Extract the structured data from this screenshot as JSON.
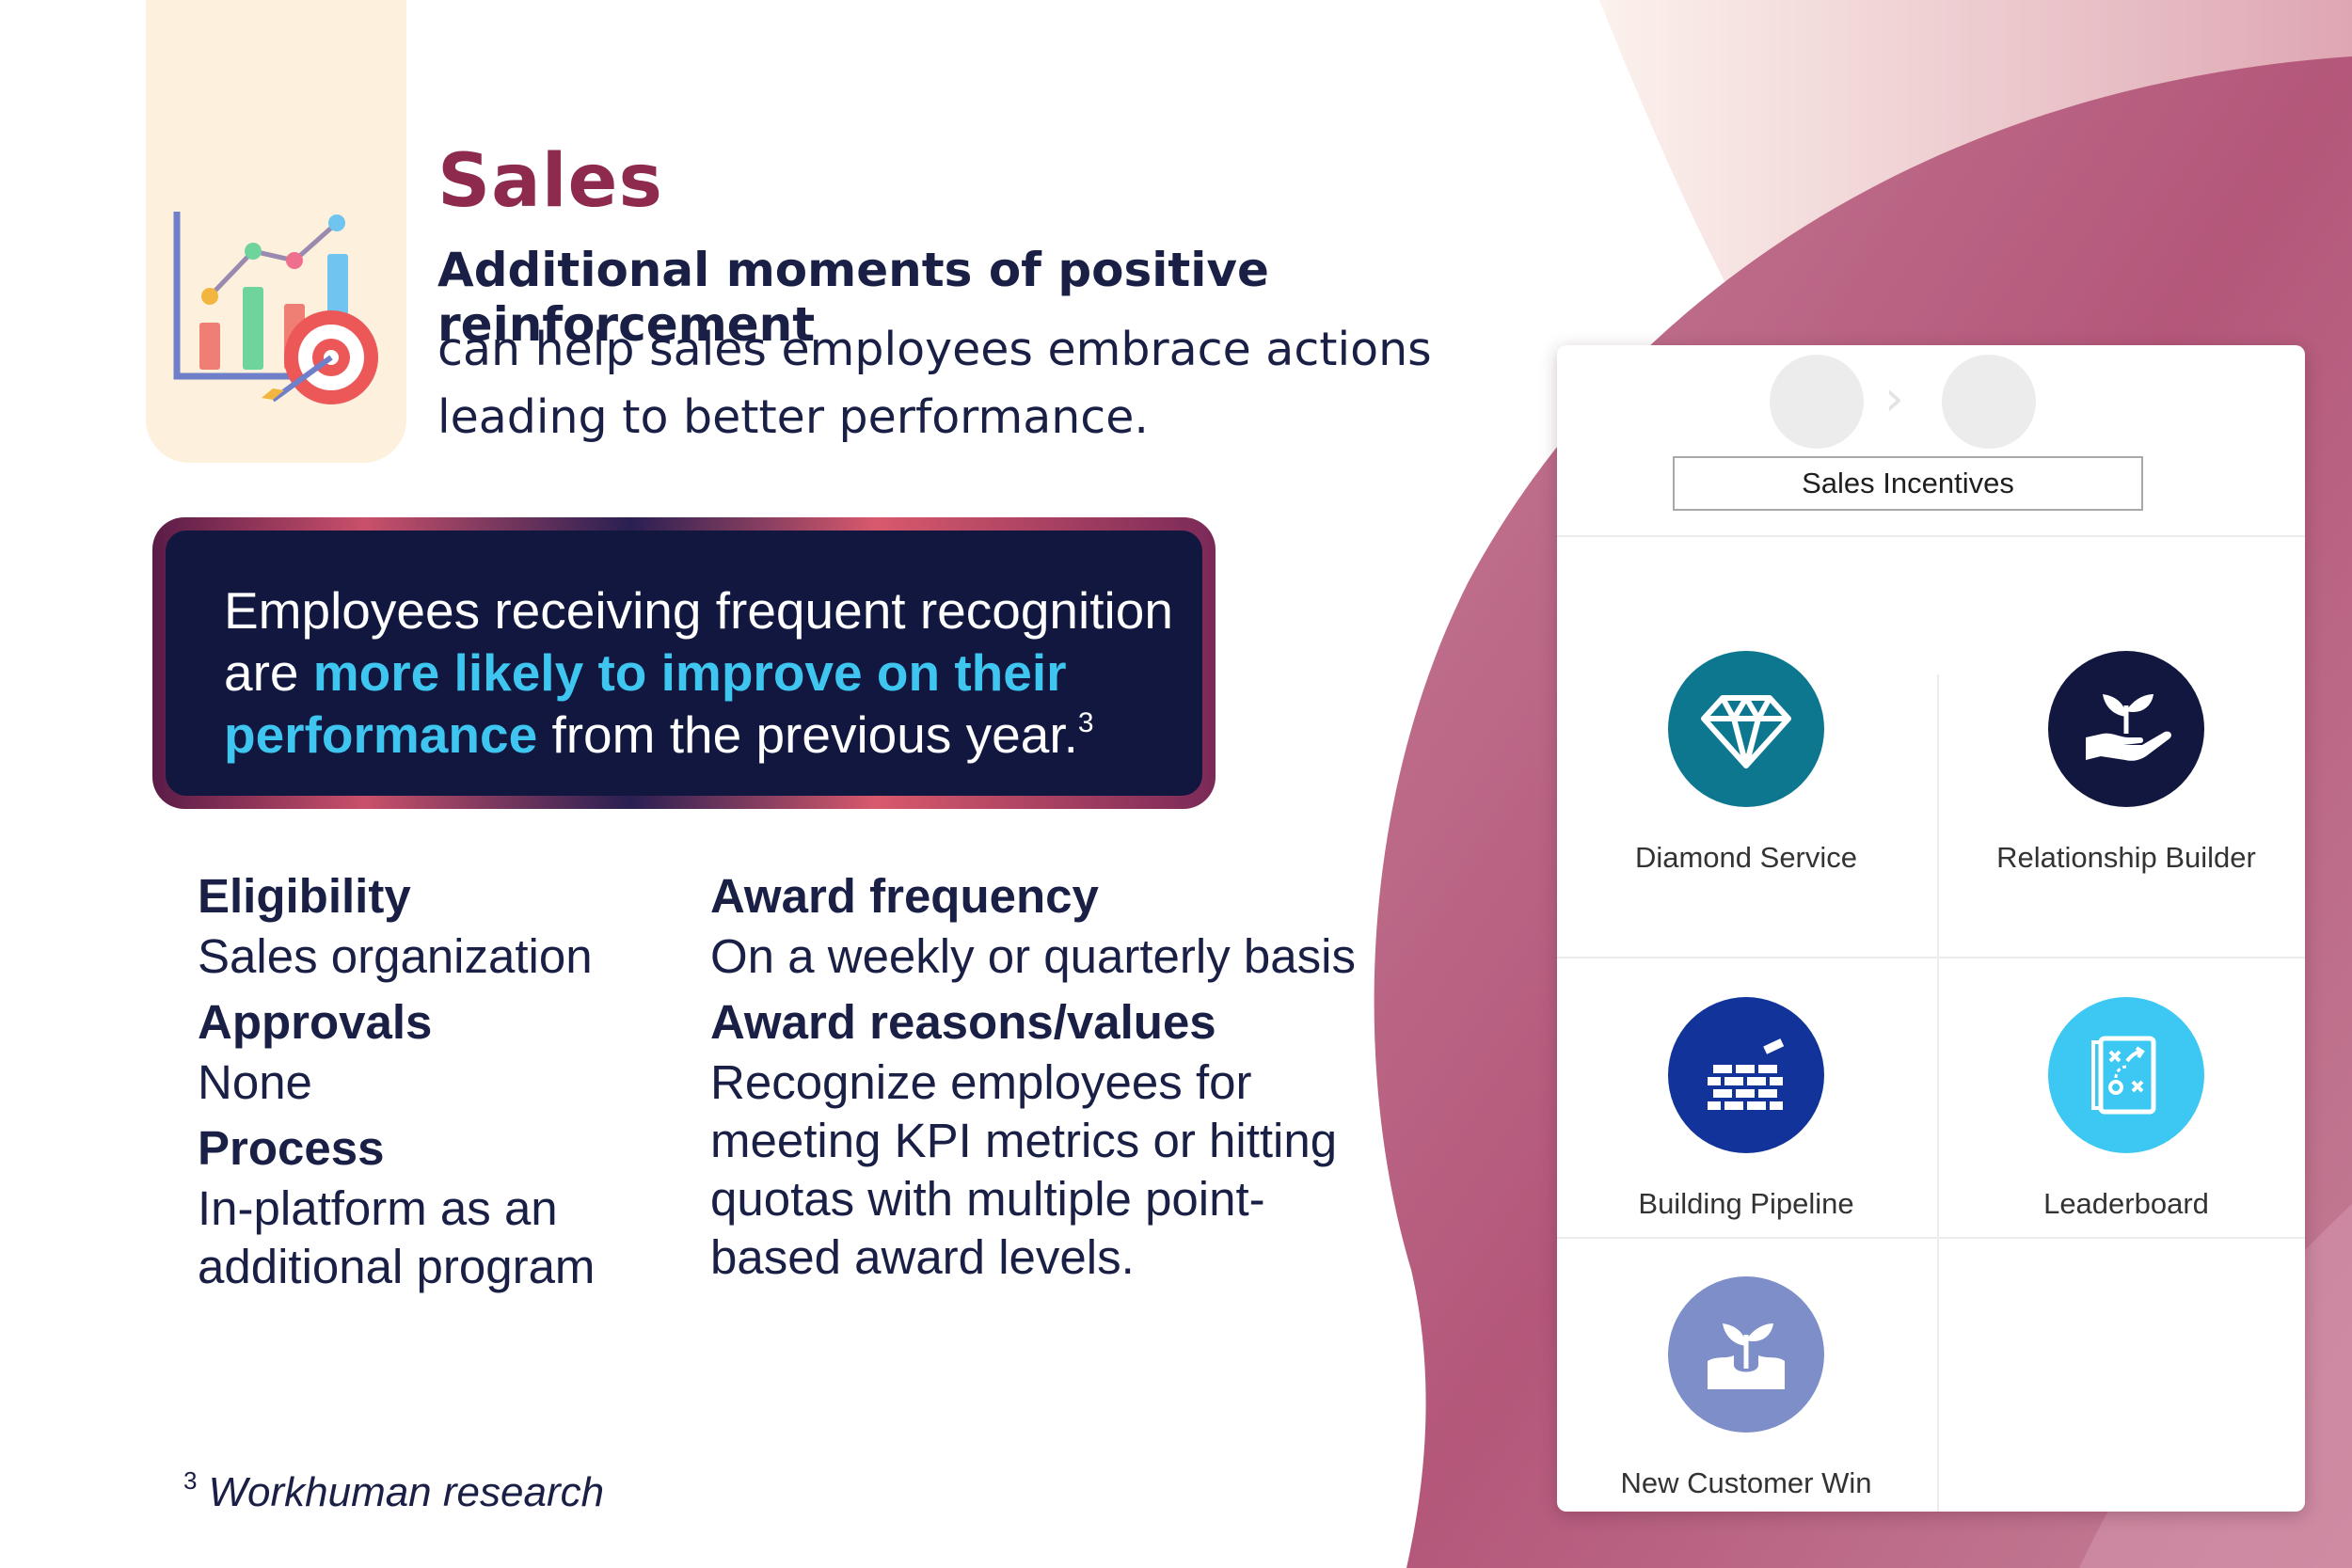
{
  "header": {
    "title": "Sales",
    "lead": "Additional moments of positive reinforcement",
    "lead_body": "can help sales employees embrace actions leading to better performance."
  },
  "callout": {
    "text_before": "Employees receiving frequent recognition are ",
    "highlight": "more likely to improve on their performance",
    "text_after": " from the previous year.",
    "footnote_ref": "3"
  },
  "details": {
    "left": [
      {
        "heading": "Eligibility",
        "body": "Sales organization"
      },
      {
        "heading": "Approvals",
        "body": "None"
      },
      {
        "heading": "Process",
        "body": "In-platform as an additional program"
      }
    ],
    "right": [
      {
        "heading": "Award frequency",
        "body": "On a weekly or quarterly basis"
      },
      {
        "heading": "Award reasons/values",
        "body": "Recognize employees for meeting KPI metrics or hitting quotas with multiple point-based award levels."
      }
    ]
  },
  "footnote": {
    "marker": "3",
    "text": "Workhuman research"
  },
  "card": {
    "tab_label": "Sales Incentives",
    "awards": [
      {
        "label": "Diamond Service",
        "icon": "diamond-icon",
        "color": "#0d7790"
      },
      {
        "label": "Relationship Builder",
        "icon": "hand-plant-icon",
        "color": "#11173f"
      },
      {
        "label": "Building Pipeline",
        "icon": "brick-wall-icon",
        "color": "#12349a"
      },
      {
        "label": "Leaderboard",
        "icon": "strategy-board-icon",
        "color": "#3cc8f2"
      },
      {
        "label": "New Customer Win",
        "icon": "sprout-icon",
        "color": "#7d8ec8"
      }
    ]
  },
  "colors": {
    "title": "#8e2a4e",
    "navy": "#11173f",
    "highlight": "#3ec6f0",
    "mauve": "#b4577a"
  }
}
